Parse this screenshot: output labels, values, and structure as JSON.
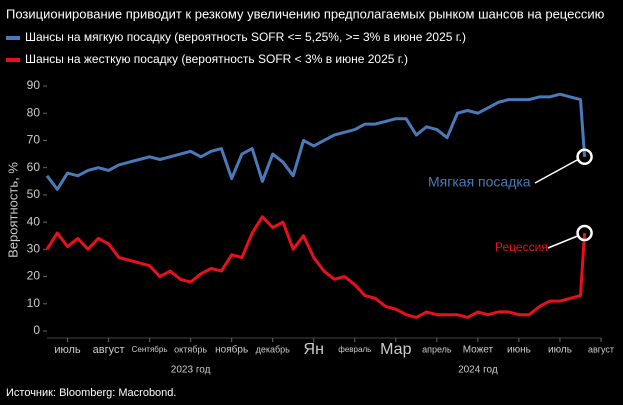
{
  "chart_data": {
    "type": "line",
    "title": "Позиционирование приводит к резкому увеличению предполагаемых рынком шансов на рецессию",
    "y_label": "Вероятность, %",
    "x": [
      -0.5,
      -0.25,
      0,
      0.25,
      0.5,
      0.75,
      1,
      1.25,
      1.5,
      1.75,
      2,
      2.25,
      2.5,
      2.75,
      3,
      3.25,
      3.5,
      3.75,
      4,
      4.25,
      4.5,
      4.75,
      5,
      5.25,
      5.5,
      5.75,
      6,
      6.25,
      6.5,
      6.75,
      7,
      7.25,
      7.5,
      7.75,
      8,
      8.25,
      8.5,
      8.75,
      9,
      9.25,
      9.5,
      9.75,
      10,
      10.25,
      10.5,
      10.75,
      11,
      11.25,
      11.5,
      11.75,
      12,
      12.25,
      12.5,
      12.6
    ],
    "xlim": [
      -0.5,
      13
    ],
    "xticks": [
      {
        "value": 0,
        "label": "июль"
      },
      {
        "value": 1,
        "label": "август"
      },
      {
        "value": 2,
        "label": "Сентябрь"
      },
      {
        "value": 3,
        "label": "октябрь"
      },
      {
        "value": 4,
        "label": "ноябрь"
      },
      {
        "value": 5,
        "label": "декабрь"
      },
      {
        "value": 6,
        "label": "Ян"
      },
      {
        "value": 7,
        "label": "февраль"
      },
      {
        "value": 8,
        "label": "Мар"
      },
      {
        "value": 9,
        "label": "апрель"
      },
      {
        "value": 10,
        "label": "Может"
      },
      {
        "value": 11,
        "label": "июнь"
      },
      {
        "value": 12,
        "label": "июль"
      },
      {
        "value": 13,
        "label": "август"
      }
    ],
    "year_labels": [
      {
        "value": 3,
        "label": "2023 год"
      },
      {
        "value": 10,
        "label": "2024 год"
      }
    ],
    "ylim": [
      0,
      90
    ],
    "yticks": [
      0,
      10,
      20,
      30,
      40,
      50,
      60,
      70,
      80,
      90
    ],
    "series": [
      {
        "name": "Шансы на мягкую посадку (вероятность SOFR <= 5,25%, >= 3% в июне 2025 г.)",
        "color": "#4a7ab8",
        "annotation": "Мягкая посадка",
        "values": [
          57,
          52,
          58,
          57,
          59,
          60,
          59,
          61,
          62,
          63,
          64,
          63,
          64,
          65,
          66,
          64,
          66,
          67,
          56,
          65,
          67,
          55,
          65,
          62,
          57,
          70,
          68,
          70,
          72,
          73,
          74,
          76,
          76,
          77,
          78,
          78,
          72,
          75,
          74,
          71,
          80,
          81,
          80,
          82,
          84,
          85,
          85,
          85,
          86,
          86,
          87,
          86,
          85,
          64
        ]
      },
      {
        "name": "Шансы на жесткую посадку (вероятность SOFR < 3% в июне 2025 г.)",
        "color": "#e8101a",
        "annotation": "Рецессия",
        "values": [
          30,
          36,
          31,
          34,
          30,
          34,
          32,
          27,
          26,
          25,
          24,
          20,
          22,
          19,
          18,
          21,
          23,
          22,
          28,
          27,
          36,
          42,
          38,
          40,
          30,
          35,
          27,
          22,
          19,
          20,
          17,
          13,
          12,
          9,
          8,
          6,
          5,
          7,
          6,
          6,
          6,
          5,
          7,
          6,
          7,
          7,
          6,
          6,
          9,
          11,
          11,
          12,
          13,
          36
        ]
      }
    ],
    "source": "Источник: Bloomberg: Macrobond."
  }
}
